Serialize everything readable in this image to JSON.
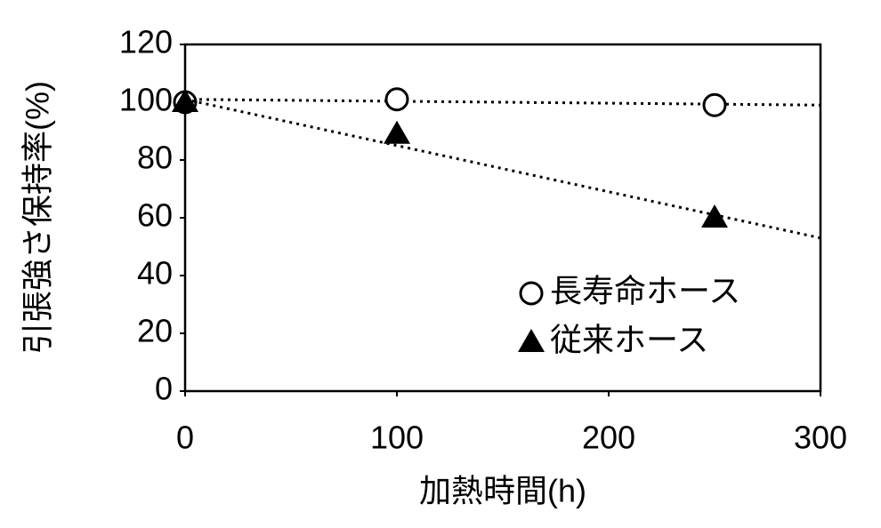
{
  "chart_data": {
    "type": "scatter",
    "x_label": "加熱時間(h)",
    "y_label": "引張強さ保持率(%)",
    "xlim": [
      0,
      300
    ],
    "xticks": [
      0,
      100,
      200,
      300
    ],
    "ylim": [
      0,
      120
    ],
    "yticks": [
      0,
      20,
      40,
      60,
      80,
      100,
      120
    ],
    "grid": false,
    "legend": "lower right",
    "series": [
      {
        "name": "長寿命ホース",
        "color": "#000000",
        "marker": "circle",
        "x": [
          0,
          100,
          250
        ],
        "values": [
          100,
          101,
          99
        ],
        "trendline_values": [
          101,
          99
        ]
      },
      {
        "name": "従来ホース",
        "color": "#000000",
        "marker": "triangle",
        "x": [
          0,
          100,
          250
        ],
        "values": [
          100,
          89,
          60
        ],
        "trendline_values": [
          101,
          53
        ]
      }
    ]
  }
}
